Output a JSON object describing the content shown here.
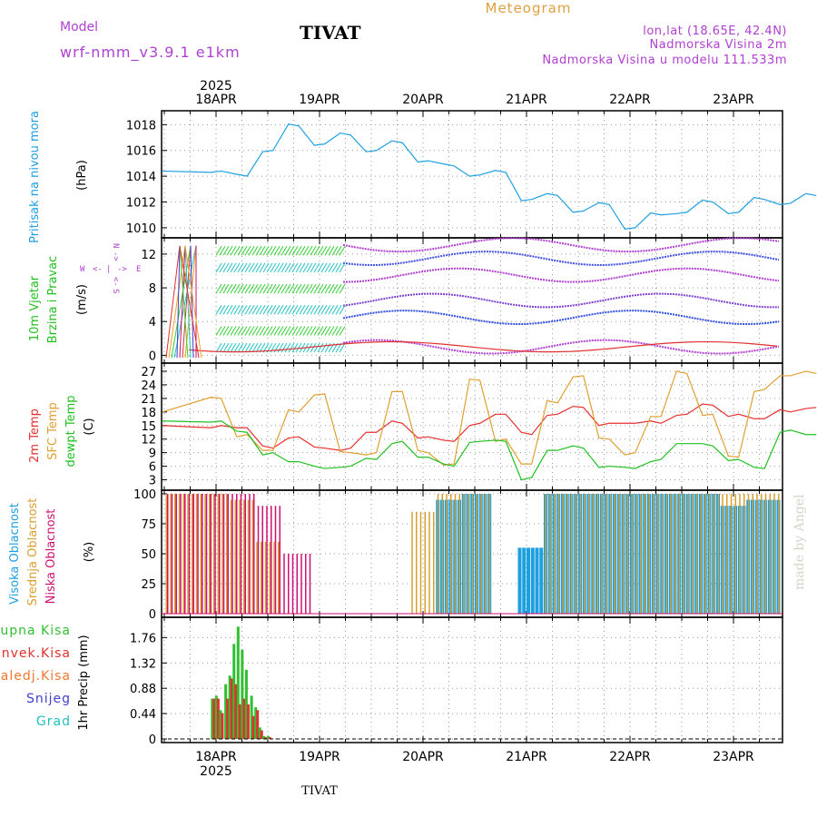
{
  "header": {
    "model_label": "Model",
    "model_name": "wrf-nmm_v3.9.1 e1km",
    "station": "TIVAT",
    "chart_title": "Meteogram",
    "coords": "lon,lat (18.65E, 42.4N)",
    "elevation": "Nadmorska Visina 2m",
    "model_elevation": "Nadmorska Visina u modelu 111.533m"
  },
  "footer_station": "TIVAT",
  "watermark": "made by Angel",
  "colors": {
    "pressure": "#1ea0e0",
    "temp2m": "#e83030",
    "sfc": "#e0a030",
    "dewpt": "#20c020",
    "cloud_high": "#1ea0e0",
    "cloud_mid": "#d8a030",
    "cloud_low": "#d01070",
    "precip_total": "#30c030",
    "precip_conv": "#e03030",
    "precip_frz": "#f07830",
    "snow": "#4040d0",
    "grad": "#20c0c0",
    "purple": "#b040d0"
  },
  "time_axis": {
    "top_year": "2025",
    "bottom_year": "2025",
    "days": [
      "18APR",
      "19APR",
      "20APR",
      "21APR",
      "22APR",
      "23APR"
    ]
  },
  "wind_compass": {
    "w": "W",
    "e": "E",
    "n": "N",
    "s": "S",
    "arrow_left": "<-",
    "arrow_right": "->",
    "bar": "|"
  },
  "chart_data": [
    {
      "type": "line",
      "panel": "pressure",
      "ylabel_left": "Pritisak na nivou mora",
      "ylabel_unit": "(hPa)",
      "yticks": [
        "1010",
        "1012",
        "1014",
        "1016",
        "1018"
      ],
      "ylim": [
        1009.5,
        1018.8
      ],
      "x": [
        0,
        0.25,
        0.5,
        0.75,
        1.0,
        1.25,
        1.5,
        1.75,
        2.0,
        2.25,
        2.5,
        2.75,
        3.0,
        3.25,
        3.5,
        3.75,
        4.0,
        4.25,
        4.5,
        4.75,
        5.0,
        5.25,
        5.5,
        5.75
      ],
      "series": [
        {
          "values": [
            1014.4,
            1014.0,
            1016.0,
            1017.9,
            1016.5,
            1017.2,
            1016.0,
            1016.6,
            1015.2,
            1014.8,
            1014.1,
            1014.3,
            1012.2,
            1012.5,
            1011.3,
            1011.8,
            1010.0,
            1011.0,
            1011.2,
            1012.0,
            1011.2,
            1012.2,
            1011.9,
            1012.5
          ]
        }
      ]
    },
    {
      "type": "scatter",
      "panel": "wind",
      "ylabel_left": [
        "10m Vjetar",
        "Brzina i Pravac"
      ],
      "ylabel_unit": "(m/s)",
      "yticks": [
        "0",
        "4",
        "8",
        "12"
      ],
      "ylim": [
        -0.5,
        13.5
      ]
    },
    {
      "type": "line",
      "panel": "temperature",
      "ylabel_left": [
        "2m Temp",
        "SFC Temp",
        "dewpt Temp"
      ],
      "ylabel_unit": "(C)",
      "yticks": [
        "3",
        "6",
        "9",
        "12",
        "15",
        "18",
        "21",
        "24",
        "27"
      ],
      "ylim": [
        1.5,
        28
      ],
      "x": [
        0,
        0.25,
        0.5,
        0.75,
        1.0,
        1.25,
        1.5,
        1.75,
        2.0,
        2.25,
        2.5,
        2.75,
        3.0,
        3.25,
        3.5,
        3.75,
        4.0,
        4.25,
        4.5,
        4.75,
        5.0,
        5.25,
        5.5,
        5.75
      ],
      "series": [
        {
          "name": "2m Temp",
          "values": [
            15.0,
            14.5,
            10.0,
            12.5,
            10.0,
            10.0,
            13.5,
            15.5,
            12.5,
            11.5,
            15.5,
            17.5,
            13.0,
            17.5,
            19.0,
            15.5,
            15.5,
            15.5,
            17.5,
            19.5,
            17.5,
            16.5,
            18.0,
            19.0
          ]
        },
        {
          "name": "SFC Temp",
          "values": [
            21.0,
            13.0,
            9.5,
            18.0,
            22.0,
            9.0,
            9.0,
            22.5,
            9.0,
            6.5,
            25.0,
            12.0,
            6.5,
            20.0,
            26.0,
            12.0,
            9.0,
            17.0,
            26.5,
            17.5,
            8.0,
            23.0,
            26.0,
            26.5
          ]
        },
        {
          "name": "dewpt Temp",
          "values": [
            16.0,
            13.5,
            9.0,
            7.0,
            5.5,
            6.0,
            7.5,
            11.5,
            8.0,
            6.0,
            11.5,
            11.5,
            3.5,
            9.5,
            10.0,
            6.0,
            5.5,
            7.5,
            11.0,
            10.5,
            7.5,
            5.5,
            14.0,
            13.0
          ]
        }
      ]
    },
    {
      "type": "bar",
      "panel": "clouds",
      "ylabel_left": [
        "Visoka Oblacnost",
        "Srednja Oblacnost",
        "Niska Oblacnost"
      ],
      "ylabel_unit": "(%)",
      "yticks": [
        "0",
        "25",
        "50",
        "75",
        "100"
      ],
      "ylim": [
        0,
        100
      ],
      "x": [
        0,
        0.25,
        0.5,
        0.75,
        1.0,
        1.25,
        1.5,
        1.75,
        2.0,
        2.25,
        2.5,
        2.75,
        3.0,
        3.25,
        3.5,
        3.75,
        4.0,
        4.25,
        4.5,
        4.75,
        5.0,
        5.25,
        5.5,
        5.75
      ],
      "series": [
        {
          "name": "Visoka Oblacnost",
          "values": [
            0,
            0,
            0,
            0,
            0,
            0,
            0,
            0,
            0,
            95,
            100,
            0,
            55,
            100,
            100,
            100,
            100,
            100,
            100,
            100,
            90,
            95,
            95,
            40
          ]
        },
        {
          "name": "Srednja Oblacnost",
          "values": [
            100,
            95,
            60,
            0,
            0,
            0,
            0,
            0,
            85,
            100,
            100,
            0,
            0,
            100,
            100,
            100,
            100,
            100,
            100,
            100,
            100,
            100,
            100,
            100
          ]
        },
        {
          "name": "Niska Oblacnost",
          "values": [
            100,
            100,
            90,
            50,
            0,
            0,
            0,
            0,
            0,
            0,
            0,
            0,
            0,
            0,
            0,
            0,
            0,
            0,
            0,
            0,
            0,
            0,
            0,
            0
          ]
        }
      ]
    },
    {
      "type": "bar",
      "panel": "precipitation",
      "ylabel_left": [
        "Ukupna Kisa",
        "Konvek.Kisa",
        "Zaledj.Kisa",
        "Snijeg",
        "Grad"
      ],
      "ylabel_unit": "1hr Precip (mm)",
      "yticks": [
        "0",
        "0.44",
        "0.88",
        "1.32",
        "1.76"
      ],
      "ylim": [
        0,
        2.05
      ],
      "x": [
        0.25,
        0.29,
        0.33,
        0.38,
        0.42,
        0.46,
        0.5,
        0.54,
        0.58,
        0.63,
        0.67,
        0.71,
        0.75,
        0.79
      ],
      "series": [
        {
          "name": "Ukupna Kisa",
          "values": [
            0.7,
            0.75,
            0.5,
            0.95,
            1.1,
            1.65,
            1.95,
            1.55,
            1.2,
            0.75,
            0.55,
            0.2,
            0.05,
            0.05
          ]
        },
        {
          "name": "Konvek.Kisa",
          "values": [
            0.7,
            0.7,
            0.45,
            0.7,
            1.05,
            0.95,
            0.6,
            0.7,
            0.6,
            0.4,
            0.5,
            0.15,
            0.03,
            0.03
          ]
        }
      ]
    }
  ]
}
